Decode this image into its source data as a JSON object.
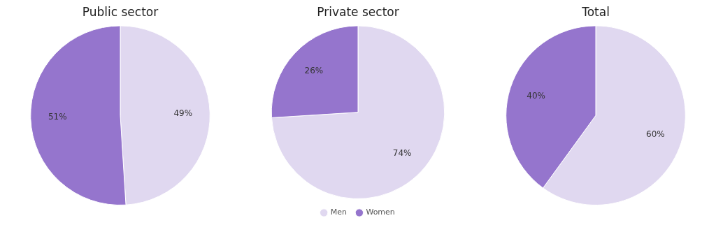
{
  "chart_data": [
    {
      "type": "pie",
      "title": "Public sector",
      "categories": [
        null,
        null
      ],
      "values": [
        49,
        51
      ],
      "colors": [
        "#e0d8f0",
        "#9575cd"
      ],
      "value_labels": [
        "49%",
        "51%"
      ]
    },
    {
      "type": "pie",
      "title": "Private sector",
      "categories": [
        "Men",
        "Women"
      ],
      "values": [
        74,
        26
      ],
      "colors": [
        "#e0d8f0",
        "#9575cd"
      ],
      "value_labels": [
        "74%",
        "26%"
      ],
      "legend": "bottom"
    },
    {
      "type": "pie",
      "title": "Total",
      "categories": [
        null,
        null
      ],
      "values": [
        60,
        40
      ],
      "colors": [
        "#e0d8f0",
        "#9575cd"
      ],
      "value_labels": [
        "60%",
        "40%"
      ]
    }
  ]
}
